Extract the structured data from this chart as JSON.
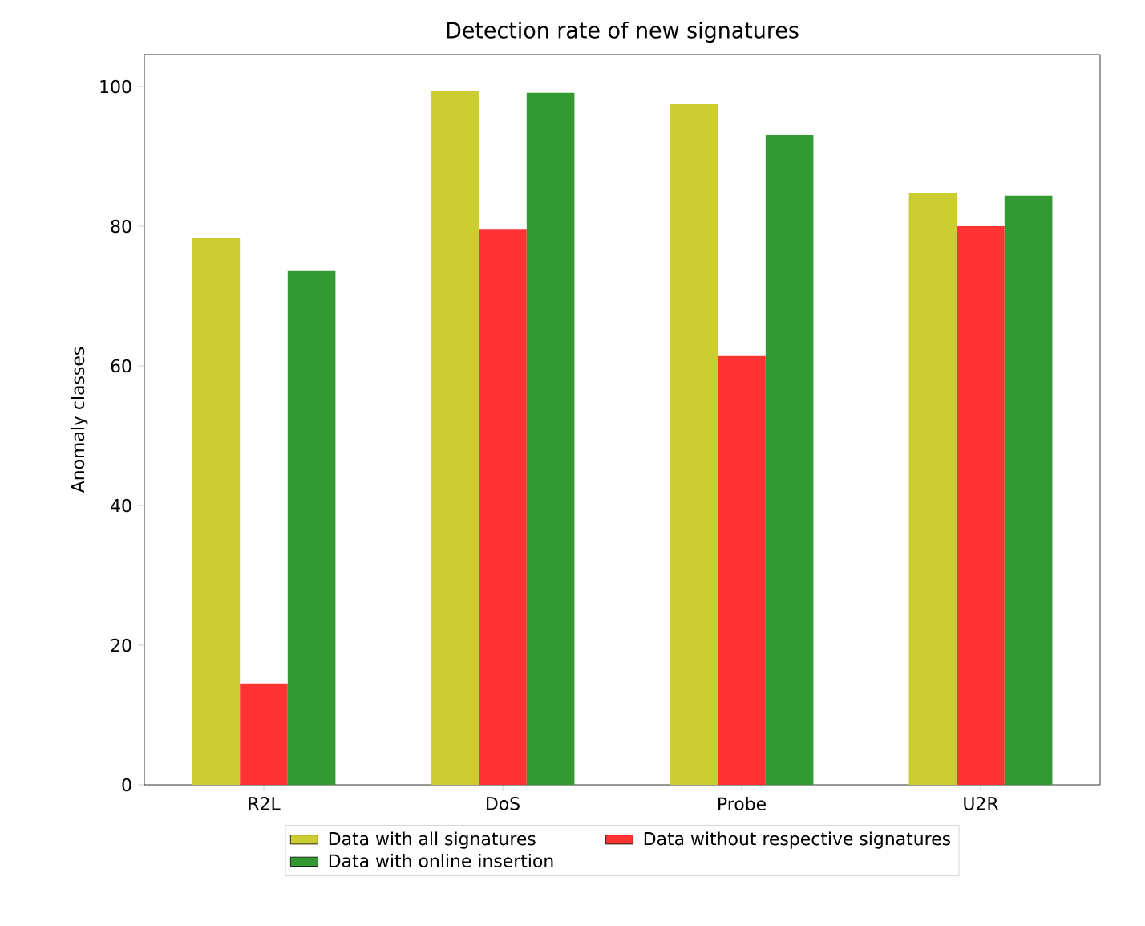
{
  "chart_data": {
    "type": "bar",
    "title": "Detection rate of new signatures",
    "ylabel": "Anomaly classes",
    "categories": [
      "R2L",
      "DoS",
      "Probe",
      "U2R"
    ],
    "series": [
      {
        "name": "Data with all signatures",
        "color": "#cccc33",
        "values": [
          78.4,
          99.3,
          97.5,
          84.8
        ]
      },
      {
        "name": "Data without respective signatures",
        "color": "#ff3333",
        "values": [
          14.5,
          79.5,
          61.4,
          80.0
        ]
      },
      {
        "name": "Data with online insertion",
        "color": "#339933",
        "values": [
          73.6,
          99.1,
          93.1,
          84.4
        ]
      }
    ],
    "ylim": [
      0,
      104.6
    ],
    "yticks": [
      0,
      20,
      40,
      60,
      80,
      100
    ],
    "grid": false,
    "legend": "bottom"
  }
}
